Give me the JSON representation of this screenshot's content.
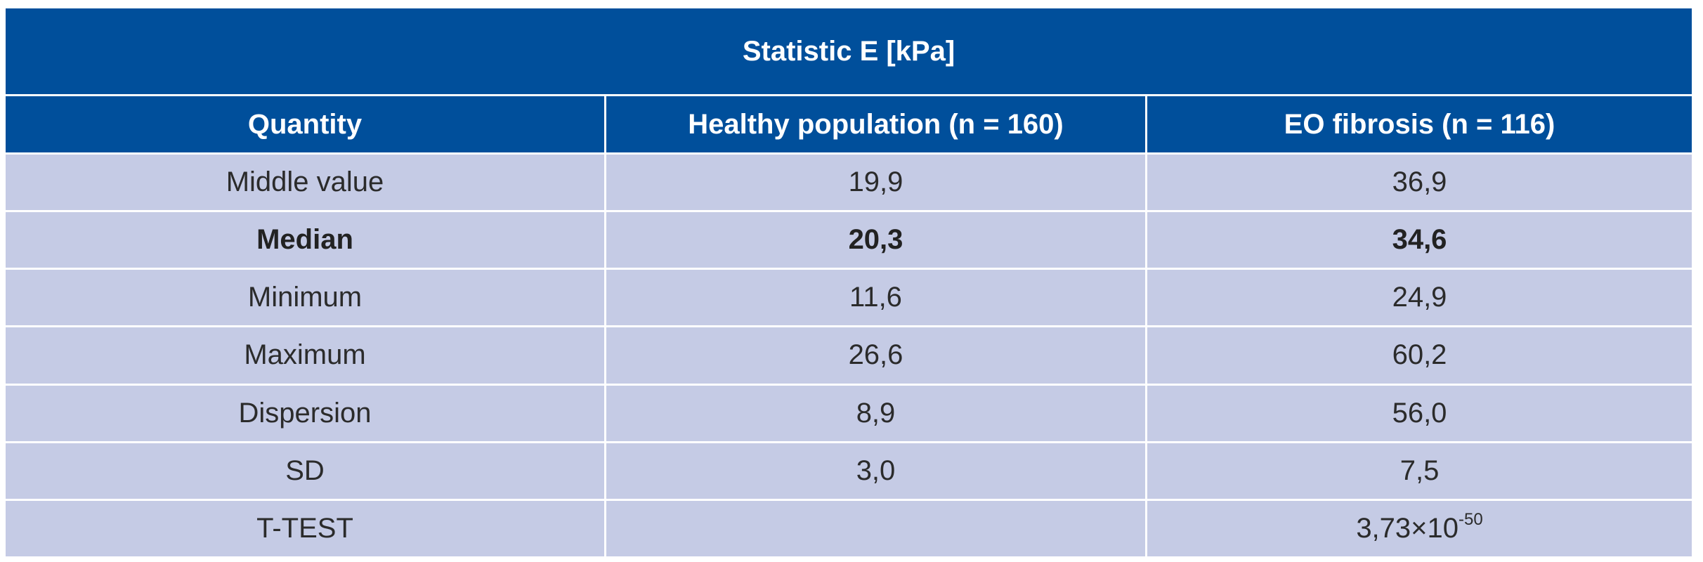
{
  "table": {
    "title": "Statistic E [kPa]",
    "headers": [
      "Quantity",
      "Healthy population (n = 160)",
      "EO fibrosis (n = 116)"
    ],
    "rows": [
      {
        "quantity": "Middle value",
        "healthy": "19,9",
        "fibrosis": "36,9",
        "bold": false
      },
      {
        "quantity": "Median",
        "healthy": "20,3",
        "fibrosis": "34,6",
        "bold": true
      },
      {
        "quantity": "Minimum",
        "healthy": "11,6",
        "fibrosis": "24,9",
        "bold": false
      },
      {
        "quantity": "Maximum",
        "healthy": "26,6",
        "fibrosis": "60,2",
        "bold": false
      },
      {
        "quantity": "Dispersion",
        "healthy": "8,9",
        "fibrosis": "56,0",
        "bold": false
      },
      {
        "quantity": "SD",
        "healthy": "3,0",
        "fibrosis": "7,5",
        "bold": false
      },
      {
        "quantity": "T-TEST",
        "healthy": "",
        "fibrosis": "3,73×10",
        "fibrosis_exponent": "-50",
        "bold": false
      }
    ]
  },
  "colors": {
    "header_bg": "#004f9b",
    "header_text": "#ffffff",
    "body_bg": "#c5cbe5",
    "body_text": "#2b2b2b"
  }
}
